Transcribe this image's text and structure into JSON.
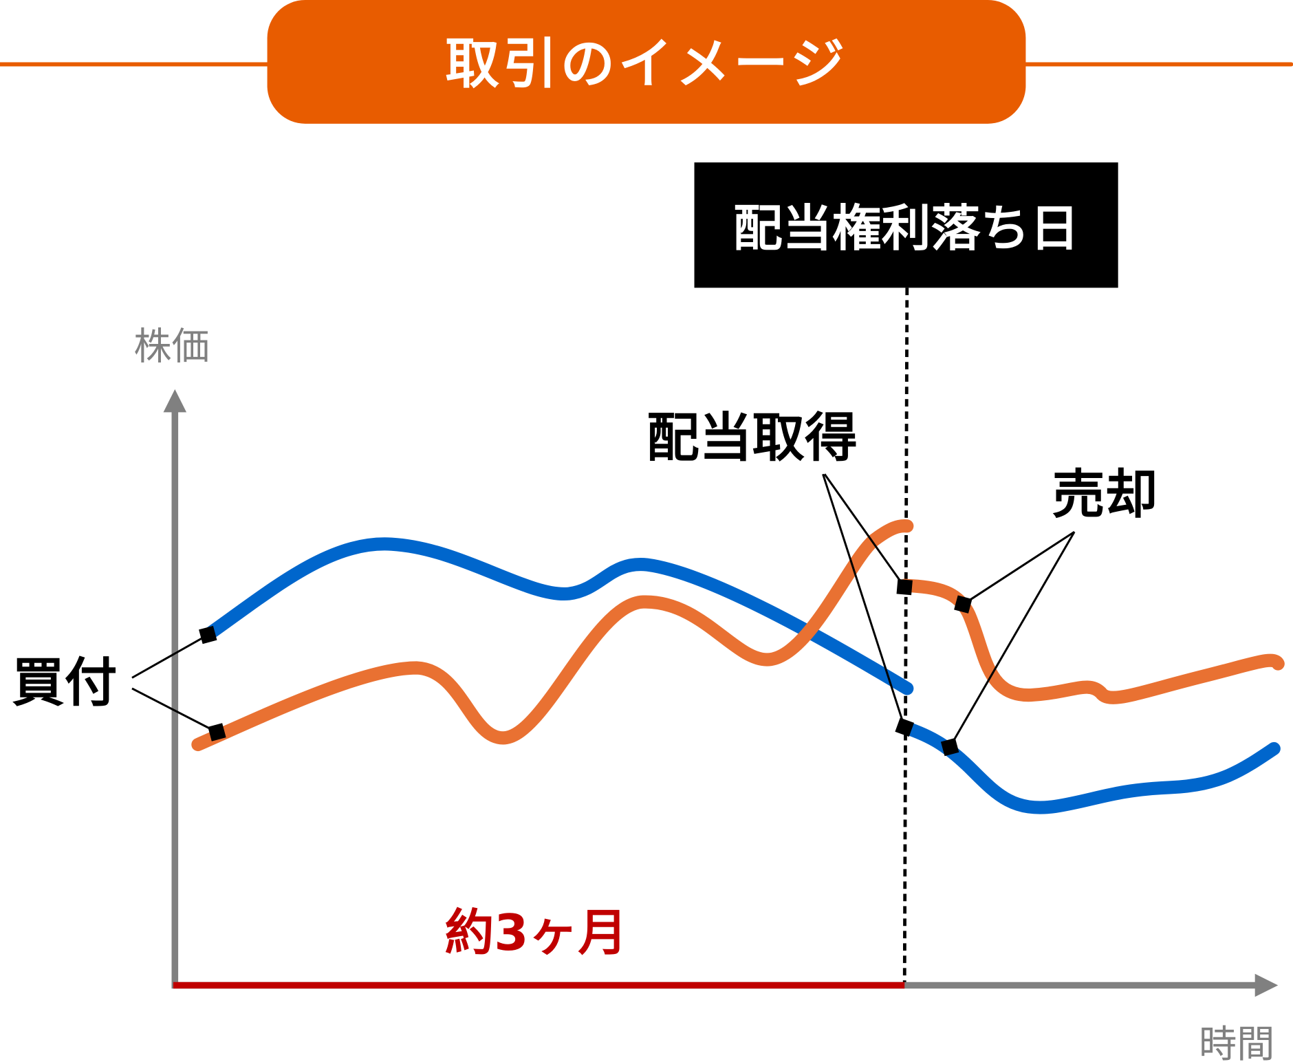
{
  "title": "取引のイメージ",
  "ex_dividend_label": "配当権利落ち日",
  "axis": {
    "y_label": "株価",
    "x_label": "時間"
  },
  "annotations": {
    "buy": "買付",
    "dividend": "配当取得",
    "sell": "売却",
    "period": "約3ヶ月"
  },
  "colors": {
    "header": "#E85C00",
    "orange_line": "#E97132",
    "blue_line": "#0066CC",
    "axis": "#808080",
    "period": "#C00000"
  }
}
